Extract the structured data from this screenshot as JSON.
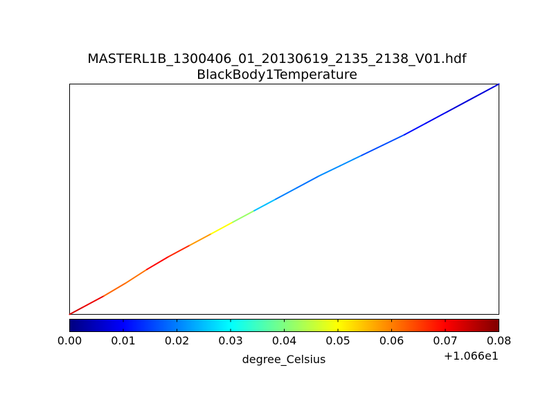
{
  "chart_data": {
    "type": "line",
    "title": "MASTERL1B_1300406_01_20130619_2135_2138_V01.hdf",
    "subtitle": "BlackBody1Temperature",
    "axes_visible": false,
    "colormap": "jet",
    "colorbar": {
      "label": "degree_Celsius",
      "offset_label": "+1.066e1",
      "offset": 10.66,
      "range": [
        0.0,
        0.08
      ],
      "ticks": [
        "0.00",
        "0.01",
        "0.02",
        "0.03",
        "0.04",
        "0.05",
        "0.06",
        "0.07",
        "0.08"
      ],
      "colors": [
        "#00007f",
        "#0000ff",
        "#007fff",
        "#00ffff",
        "#7fff7f",
        "#ffff00",
        "#ff7f00",
        "#ff0000",
        "#7f0000"
      ]
    },
    "series": [
      {
        "x": [
          0,
          0.03,
          0.08,
          0.13,
          0.18,
          0.23,
          0.28,
          0.33,
          0.38,
          0.43,
          0.48,
          0.53,
          0.58,
          0.63,
          0.68,
          0.73,
          0.78,
          0.83,
          0.88,
          0.93,
          1.0
        ],
        "y": [
          0,
          0.03,
          0.08,
          0.135,
          0.195,
          0.25,
          0.3,
          0.35,
          0.4,
          0.45,
          0.5,
          0.55,
          0.6,
          0.645,
          0.69,
          0.735,
          0.78,
          0.83,
          0.88,
          0.93,
          1.0
        ],
        "color_values": [
          0.074,
          0.073,
          0.07,
          0.054,
          0.068,
          0.072,
          0.062,
          0.054,
          0.046,
          0.038,
          0.012,
          0.028,
          0.01,
          0.032,
          0.01,
          0.022,
          0.01,
          0.012,
          0.006,
          0.008,
          0.006
        ]
      }
    ]
  }
}
